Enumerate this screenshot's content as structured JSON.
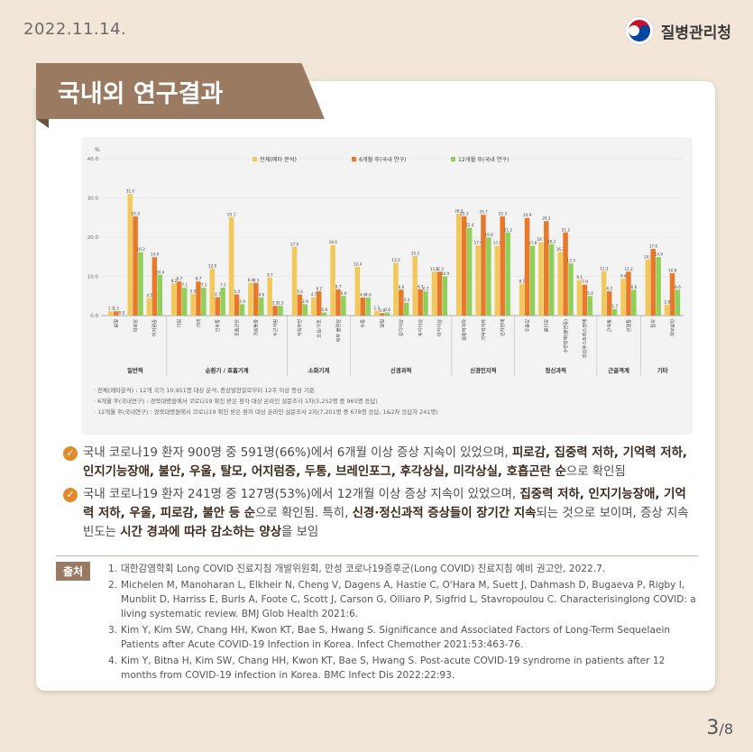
{
  "header": {
    "date": "2022.11.14.",
    "org": "질병관리청"
  },
  "banner": {
    "title": "국내외 연구결과"
  },
  "chart_data": {
    "type": "bar",
    "ylabel": "%",
    "ylim": [
      0,
      40
    ],
    "yticks": [
      "0.0",
      "10.0",
      "20.0",
      "30.0",
      "40.0"
    ],
    "legend_position": "top",
    "series": [
      {
        "name": "전체(메타 분석)",
        "color": "#f2c85b"
      },
      {
        "name": "6개월 후(국내 연구)",
        "color": "#e8792b"
      },
      {
        "name": "12개월 후(국내 연구)",
        "color": "#8fcf5a"
      }
    ],
    "categories": [
      "발열",
      "피로감",
      "어지럼증",
      "기침",
      "가래",
      "인후통",
      "호흡곤란",
      "가슴통증",
      "두근거림",
      "식욕부진",
      "오심/구토",
      "복부 불편감",
      "두통",
      "떨림",
      "감각이상",
      "후각이상",
      "미각이상",
      "집중력저하",
      "기억력저하",
      "인지장애",
      "우울감",
      "불안감",
      "수면장애(불면증)",
      "외상후스트레스장애",
      "근육통",
      "관절통",
      "탈모",
      "피부발진"
    ],
    "values": [
      [
        1.1,
        31.0,
        4.5,
        8.2,
        5.5,
        12.0,
        25.1,
        8.4,
        9.7,
        17.5,
        4.7,
        18.0,
        12.4,
        1.3,
        13.5,
        15.2,
        11.2,
        26.0,
        17.9,
        17.8,
        8.1,
        18.7,
        16.2,
        9.1,
        11.3,
        9.4,
        14.3,
        2.8
      ],
      [
        1.1,
        25.3,
        14.9,
        8.7,
        8.7,
        4.7,
        5.4,
        8.3,
        2.5,
        5.4,
        6.2,
        6.7,
        4.6,
        0.6,
        6.6,
        6.7,
        11.2,
        25.3,
        25.7,
        25.3,
        24.9,
        24.1,
        21.2,
        7.9,
        6.2,
        11.2,
        17.0,
        10.8
      ],
      [
        0.0,
        16.2,
        10.4,
        7.1,
        7.1,
        7.1,
        2.9,
        4.6,
        2.5,
        2.9,
        0.8,
        5.0,
        4.6,
        0.8,
        3.3,
        6.2,
        10.0,
        22.4,
        19.9,
        21.2,
        17.8,
        18.2,
        13.3,
        5.0,
        1.7,
        6.6,
        14.9,
        6.6
      ]
    ],
    "groups": [
      {
        "name": "일반적",
        "count": 3
      },
      {
        "name": "순환기 / 호흡기계",
        "count": 6
      },
      {
        "name": "소화기계",
        "count": 3
      },
      {
        "name": "신경과적",
        "count": 5
      },
      {
        "name": "신경인지적",
        "count": 3
      },
      {
        "name": "정신과적",
        "count": 4
      },
      {
        "name": "근골격계",
        "count": 2
      },
      {
        "name": "기타",
        "count": 2
      }
    ],
    "notes": [
      "· 전체(메타분석) : 12개 국가 10,951명 대상 분석, 증상발현일로부터 12주 이상 증상 기준",
      "· 6개월 후(국내연구) : 경북대병원에서 코로나19 확진 받은 환자 대상 온라인 설문조사 1차(5,252명 중 965명 응답)",
      "· 12개월 후(국내연구) : 경북대병원에서 코로나19 확진 받은 환자 대상 온라인 설문조사 2차(7,201명 중 678명 응답, 1&2차 응답자 241명)"
    ]
  },
  "bullets": [
    {
      "parts": [
        {
          "t": "국내 코로나19 환자 900명 중 591명(66%)에서 6개월 이상 증상 지속이 있었으며, ",
          "b": false
        },
        {
          "t": "피로감, 집중력 저하, 기억력 저하, 인지기능장애, 불안, 우울, 탈모, 어지럼증, 두통, 브레인포그, 후각상실, 미각상실, 호흡곤란 순",
          "b": true
        },
        {
          "t": "으로 확인됨",
          "b": false
        }
      ]
    },
    {
      "parts": [
        {
          "t": "국내 코로나19 환자 241명 중 127명(53%)에서 12개월 이상 증상 지속이 있었으며, ",
          "b": false
        },
        {
          "t": "집중력 저하, 인지기능장애, 기억력 저하, 우울, 피로감, 불안 등 순",
          "b": true
        },
        {
          "t": "으로 확인됨. 특히, ",
          "b": false
        },
        {
          "t": "신경·정신과적 증상들이 장기간 지속",
          "b": true
        },
        {
          "t": "되는 것으로 보이며, 증상 지속 빈도는 ",
          "b": false
        },
        {
          "t": "시간 경과에 따라 감소하는 양상",
          "b": true
        },
        {
          "t": "을 보임",
          "b": false
        }
      ]
    }
  ],
  "sources": {
    "label": "출처",
    "items": [
      {
        "num": "1.",
        "text": "대한감염학회 Long COVID 진료지침 개발위원회, 만성 코로나19증후군(Long COVID) 진료지침 예비 권고안, 2022.7."
      },
      {
        "num": "2.",
        "text": "Michelen M, Manoharan L, Elkheir N, Cheng V, Dagens A, Hastie C, O'Hara M, Suett J, Dahmash D, Bugaeva P, Rigby I, Munblit D, Harriss E, Burls A, Foote C, Scott J, Carson G, Olliaro P, Sigfrid L, Stavropoulou C. Characterisinglong COVID: a living systematic review. BMJ Glob Health 2021:6."
      },
      {
        "num": "3.",
        "text": "Kim Y, Kim SW, Chang HH, Kwon KT, Bae S, Hwang S. Significance and Associated Factors of Long-Term Sequelaein Patients after Acute COVID-19 Infection in Korea. Infect Chemother 2021:53:463-76."
      },
      {
        "num": "4.",
        "text": "Kim Y, Bitna H, Kim SW, Chang HH, Kwon KT, Bae S, Hwang S. Post-acute COVID-19 syndrome in patients after 12 months from COVID-19 infection in Korea. BMC Infect Dis 2022:22:93."
      }
    ]
  },
  "page": {
    "current": "3",
    "total": "/8"
  }
}
